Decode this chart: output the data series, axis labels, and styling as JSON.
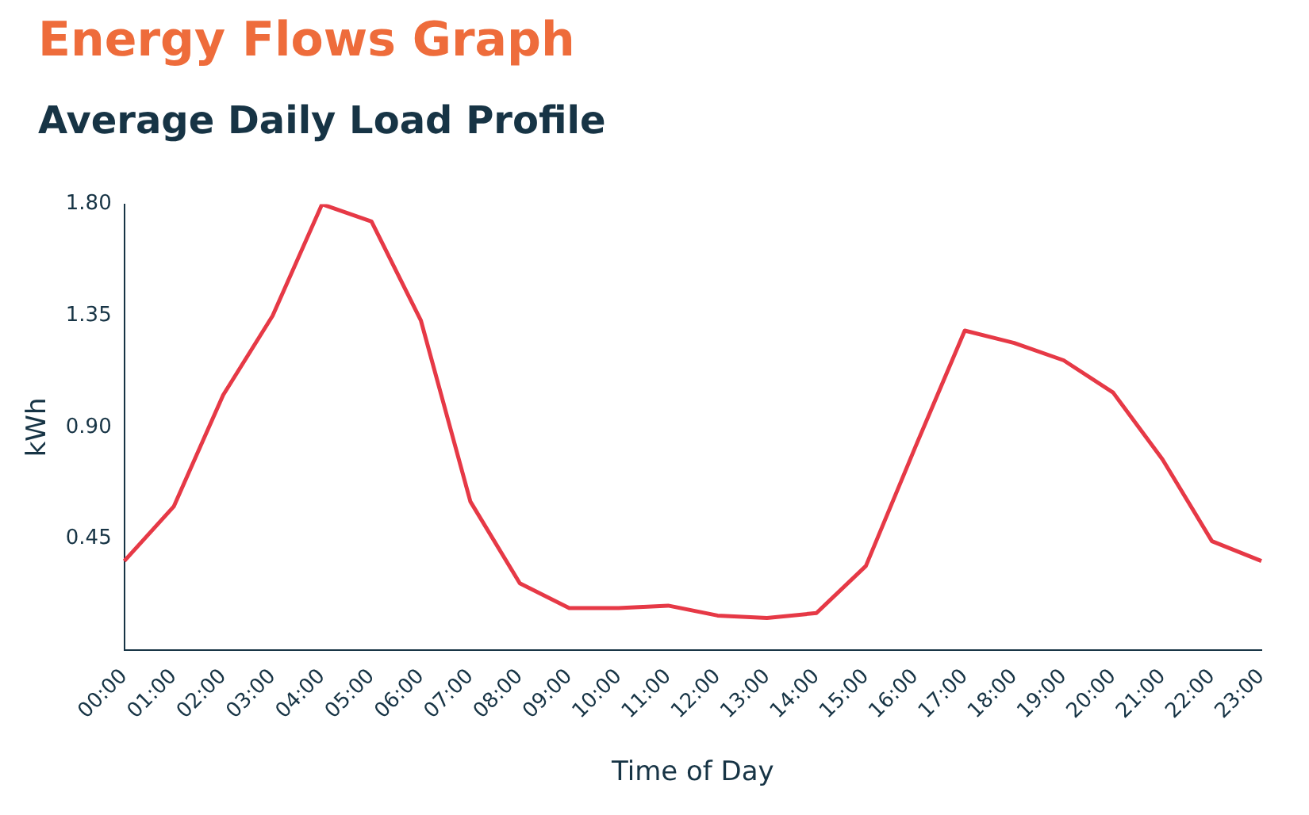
{
  "chart_data": {
    "type": "line",
    "title": "Energy Flows Graph",
    "subtitle": "Average Daily Load Profile",
    "xlabel": "Time of Day",
    "ylabel": "kWh",
    "categories": [
      "00:00",
      "01:00",
      "02:00",
      "03:00",
      "04:00",
      "05:00",
      "06:00",
      "07:00",
      "08:00",
      "09:00",
      "10:00",
      "11:00",
      "12:00",
      "13:00",
      "14:00",
      "15:00",
      "16:00",
      "17:00",
      "18:00",
      "19:00",
      "20:00",
      "21:00",
      "22:00",
      "23:00"
    ],
    "series": [
      {
        "color": "#e63946",
        "values": [
          0.36,
          0.58,
          1.03,
          1.35,
          1.8,
          1.73,
          1.33,
          0.6,
          0.27,
          0.17,
          0.17,
          0.18,
          0.14,
          0.13,
          0.15,
          0.34,
          0.82,
          1.29,
          1.24,
          1.17,
          1.04,
          0.77,
          0.44,
          0.36
        ]
      }
    ],
    "ylim": [
      0,
      1.8
    ],
    "yticks": [
      {
        "value": 0.45,
        "label": "0.45"
      },
      {
        "value": 0.9,
        "label": "0.90"
      },
      {
        "value": 1.35,
        "label": "1.35"
      },
      {
        "value": 1.8,
        "label": "1.80"
      }
    ],
    "grid": false,
    "legend": false,
    "marker": "none",
    "line_style": "solid"
  }
}
